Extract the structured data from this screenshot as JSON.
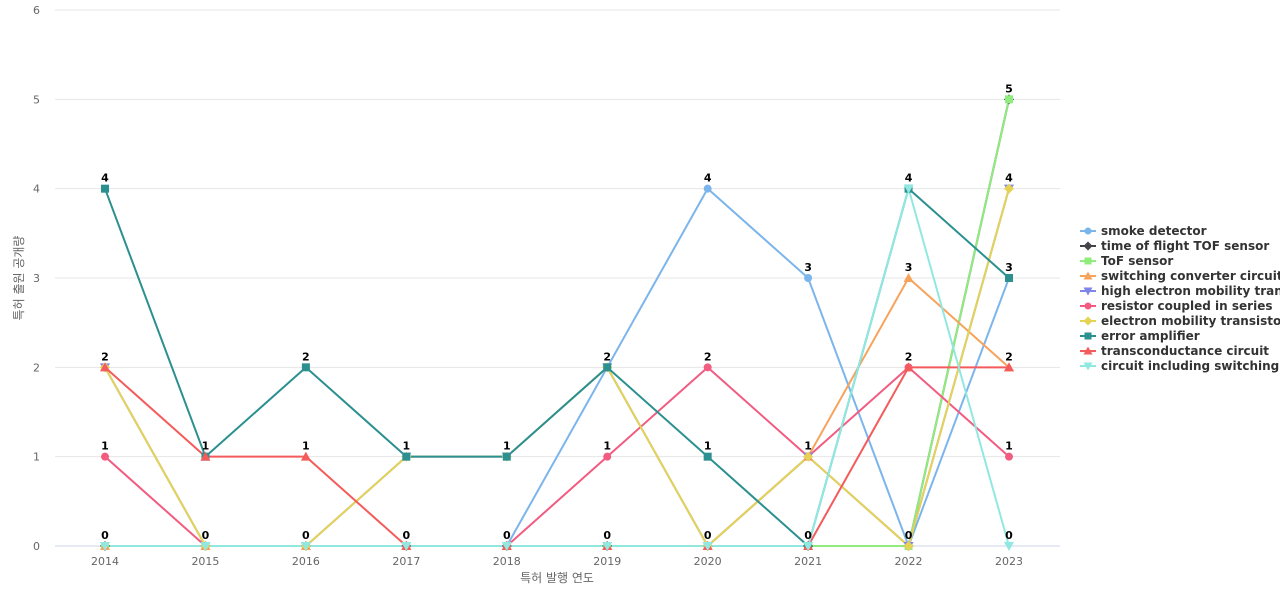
{
  "chart_data": {
    "type": "line",
    "xlabel": "특허 발행 연도",
    "ylabel": "특허 출원 공개량",
    "ylim": [
      0,
      6
    ],
    "yticks": [
      0,
      1,
      2,
      3,
      4,
      5,
      6
    ],
    "grid": true,
    "legend_position": "right",
    "categories": [
      "2014",
      "2015",
      "2016",
      "2017",
      "2018",
      "2019",
      "2020",
      "2021",
      "2022",
      "2023"
    ],
    "series": [
      {
        "name": "smoke detector",
        "color": "#7cb5ec",
        "marker": "circle",
        "values": [
          0,
          0,
          0,
          0,
          0,
          2,
          4,
          3,
          0,
          3
        ]
      },
      {
        "name": "time of flight TOF sensor",
        "color": "#434348",
        "marker": "diamond",
        "values": [
          0,
          0,
          0,
          0,
          0,
          0,
          0,
          0,
          0,
          5
        ]
      },
      {
        "name": "ToF sensor",
        "color": "#90ed7d",
        "marker": "square",
        "values": [
          0,
          0,
          0,
          0,
          0,
          0,
          0,
          0,
          0,
          5
        ]
      },
      {
        "name": "switching converter circuit",
        "color": "#f7a35c",
        "marker": "triangle",
        "values": [
          0,
          0,
          0,
          0,
          0,
          0,
          0,
          1,
          3,
          2
        ]
      },
      {
        "name": "high electron mobility tran...",
        "color": "#8085e9",
        "marker": "triangle-down",
        "values": [
          2,
          0,
          0,
          1,
          1,
          2,
          0,
          1,
          0,
          4
        ]
      },
      {
        "name": "resistor coupled in series",
        "color": "#f15c80",
        "marker": "circle",
        "values": [
          1,
          0,
          0,
          0,
          0,
          1,
          2,
          1,
          2,
          1
        ]
      },
      {
        "name": "electron mobility transistor",
        "color": "#e4d354",
        "marker": "diamond",
        "values": [
          2,
          0,
          0,
          1,
          1,
          2,
          0,
          1,
          0,
          4
        ]
      },
      {
        "name": "error amplifier",
        "color": "#2b908f",
        "marker": "square",
        "values": [
          4,
          1,
          2,
          1,
          1,
          2,
          1,
          0,
          4,
          3
        ]
      },
      {
        "name": "transconductance circuit",
        "color": "#f45b5b",
        "marker": "triangle",
        "values": [
          2,
          1,
          1,
          0,
          0,
          0,
          0,
          0,
          2,
          2
        ]
      },
      {
        "name": "circuit including switching...",
        "color": "#91e8e1",
        "marker": "triangle-down",
        "values": [
          0,
          0,
          0,
          0,
          0,
          0,
          0,
          0,
          4,
          0
        ]
      }
    ],
    "data_labels": [
      {
        "x": "2014",
        "labels": [
          "0",
          "1",
          "2",
          "4"
        ]
      },
      {
        "x": "2015",
        "labels": [
          "0",
          "1"
        ]
      },
      {
        "x": "2016",
        "labels": [
          "0",
          "1",
          "2"
        ]
      },
      {
        "x": "2017",
        "labels": [
          "0",
          "1"
        ]
      },
      {
        "x": "2018",
        "labels": [
          "0",
          "1"
        ]
      },
      {
        "x": "2019",
        "labels": [
          "0",
          "1",
          "2"
        ]
      },
      {
        "x": "2020",
        "labels": [
          "0",
          "1",
          "2",
          "4"
        ]
      },
      {
        "x": "2021",
        "labels": [
          "0",
          "1",
          "3"
        ]
      },
      {
        "x": "2022",
        "labels": [
          "0",
          "2",
          "3",
          "4"
        ]
      },
      {
        "x": "2023",
        "labels": [
          "0",
          "1",
          "2",
          "3",
          "4",
          "5"
        ]
      }
    ]
  }
}
